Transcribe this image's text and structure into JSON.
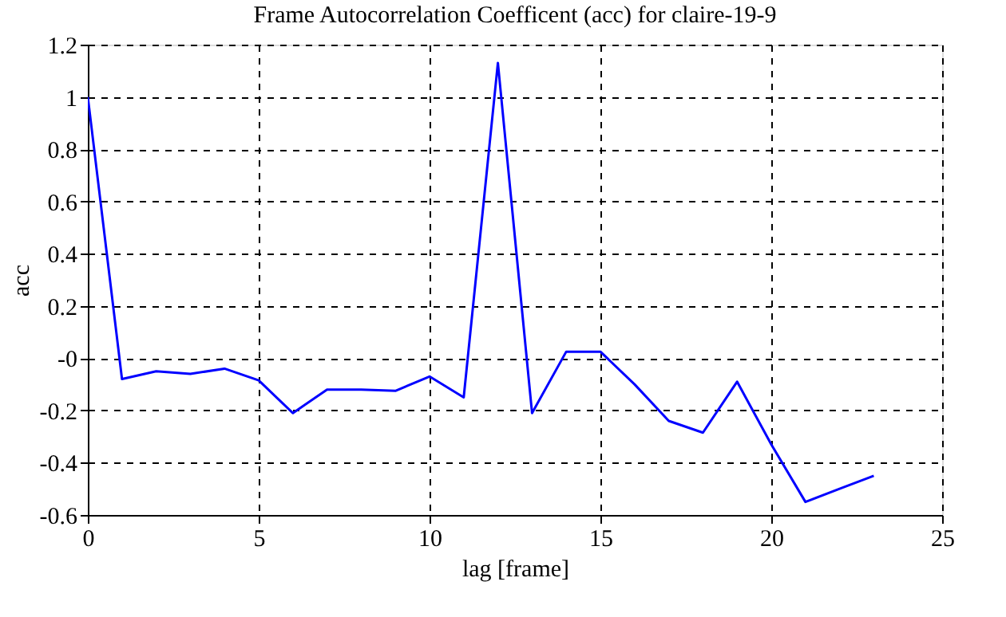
{
  "chart_data": {
    "type": "line",
    "title": "Frame Autocorrelation Coefficent (acc) for claire-19-9",
    "xlabel": "lag [frame]",
    "ylabel": "acc",
    "x": [
      0,
      1,
      2,
      3,
      4,
      5,
      6,
      7,
      8,
      9,
      10,
      11,
      12,
      13,
      14,
      15,
      16,
      17,
      18,
      19,
      20,
      21,
      22,
      23
    ],
    "series": [
      {
        "color": "#0000ff",
        "values": [
          1.0,
          -0.08,
          -0.05,
          -0.06,
          -0.04,
          -0.085,
          -0.21,
          -0.12,
          -0.12,
          -0.125,
          -0.07,
          -0.15,
          1.13,
          -0.21,
          0.025,
          0.025,
          -0.1,
          -0.24,
          -0.285,
          -0.09,
          -0.33,
          -0.55,
          -0.5,
          -0.45
        ]
      }
    ],
    "xlim": [
      0,
      25
    ],
    "xticks": [
      0,
      5,
      10,
      15,
      20,
      25
    ],
    "ylim": [
      -0.6,
      1.2
    ],
    "yticks": [
      -0.6,
      -0.4,
      -0.2,
      {
        "value": 0,
        "label": "-0"
      },
      0.2,
      0.4,
      0.6,
      0.8,
      1,
      1.2
    ],
    "grid": true,
    "line_style": "solid",
    "marker": "none"
  }
}
